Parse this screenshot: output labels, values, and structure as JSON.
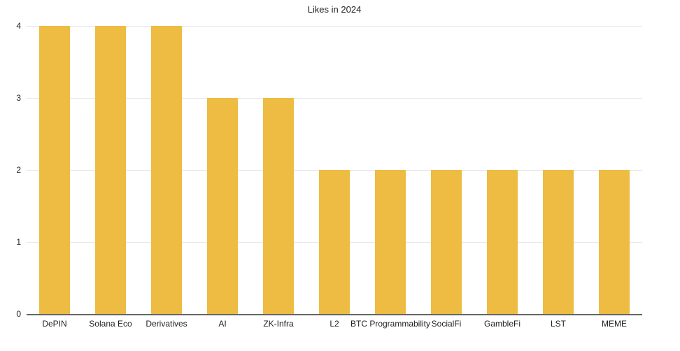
{
  "chart_data": {
    "type": "bar",
    "title": "Likes in 2024",
    "categories": [
      "DePIN",
      "Solana Eco",
      "Derivatives",
      "AI",
      "ZK-Infra",
      "L2",
      "BTC Programmability",
      "SocialFi",
      "GambleFi",
      "LST",
      "MEME"
    ],
    "values": [
      4,
      4,
      4,
      3,
      3,
      2,
      2,
      2,
      2,
      2,
      2
    ],
    "xlabel": "",
    "ylabel": "",
    "yticks": [
      0,
      1,
      2,
      3,
      4
    ],
    "ylim": [
      0,
      4
    ],
    "grid": true,
    "legend": "none",
    "colors": {
      "bar": "#EEBC42",
      "gridline": "#E3E3E3",
      "axis_line": "#666666",
      "text": "#1F1F1F",
      "background": "#FFFFFF"
    }
  }
}
